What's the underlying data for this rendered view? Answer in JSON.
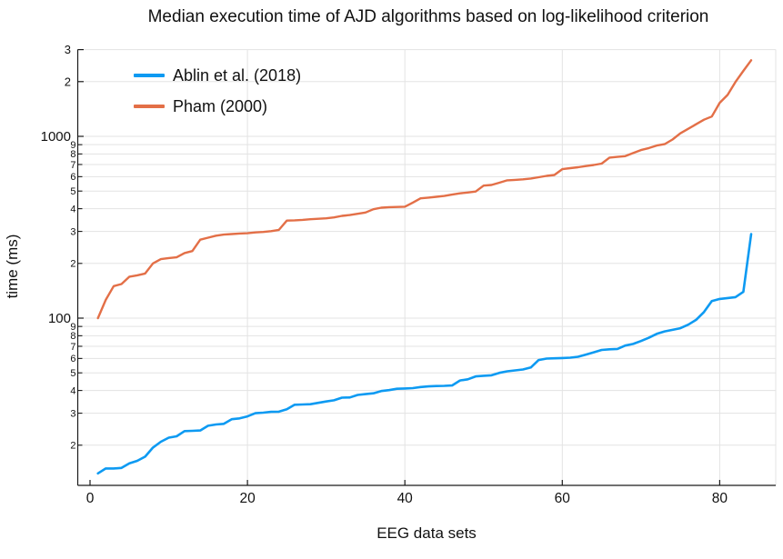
{
  "title": "Median execution time of AJD algorithms based on log-likelihood criterion",
  "chart_data": {
    "type": "line",
    "title": "Median execution time of AJD algorithms based on log-likelihood criterion",
    "xlabel": "EEG data sets",
    "ylabel": "time (ms)",
    "y_scale": "log",
    "xlim": [
      -1.6,
      87.1
    ],
    "ylim": [
      12,
      3000
    ],
    "grid": true,
    "legend_position": "top-left-inside",
    "x_ticks": [
      0,
      20,
      40,
      60,
      80
    ],
    "y_major_ticks": [
      {
        "value": 3000,
        "label": "3"
      },
      {
        "value": 2000,
        "label": "2"
      },
      {
        "value": 1000,
        "label": "1000"
      },
      {
        "value": 100,
        "label": "100"
      }
    ],
    "y_minor_ticks": [
      {
        "value": 900,
        "label": "9"
      },
      {
        "value": 800,
        "label": "8"
      },
      {
        "value": 700,
        "label": "7"
      },
      {
        "value": 600,
        "label": "6"
      },
      {
        "value": 500,
        "label": "5"
      },
      {
        "value": 400,
        "label": "4"
      },
      {
        "value": 300,
        "label": "3"
      },
      {
        "value": 200,
        "label": "2"
      },
      {
        "value": 90,
        "label": "9"
      },
      {
        "value": 80,
        "label": "8"
      },
      {
        "value": 70,
        "label": "7"
      },
      {
        "value": 60,
        "label": "6"
      },
      {
        "value": 50,
        "label": "5"
      },
      {
        "value": 40,
        "label": "4"
      },
      {
        "value": 30,
        "label": "3"
      },
      {
        "value": 20,
        "label": "2"
      }
    ],
    "x_start": 1,
    "series": [
      {
        "name": "Ablin et al. (2018)",
        "color": "#0D9AF2",
        "values": [
          14.0,
          14.9,
          14.9,
          15.0,
          15.9,
          16.4,
          17.3,
          19.4,
          20.9,
          22.0,
          22.4,
          23.9,
          24.0,
          24.1,
          25.6,
          26.0,
          26.2,
          27.8,
          28.1,
          28.8,
          30.0,
          30.2,
          30.5,
          30.6,
          31.5,
          33.4,
          33.5,
          33.6,
          34.2,
          34.8,
          35.3,
          36.5,
          36.6,
          37.8,
          38.2,
          38.6,
          39.7,
          40.2,
          40.9,
          41.0,
          41.2,
          41.8,
          42.1,
          42.3,
          42.4,
          42.6,
          45.4,
          46.1,
          47.8,
          48.2,
          48.5,
          50.0,
          51.0,
          51.6,
          52.2,
          53.5,
          58.8,
          59.9,
          60.1,
          60.3,
          60.6,
          61.3,
          63.0,
          64.9,
          66.8,
          67.4,
          67.7,
          70.6,
          72.1,
          74.8,
          78.0,
          81.9,
          84.5,
          86.2,
          88.0,
          92.0,
          97.8,
          108.0,
          124.0,
          127.5,
          129.0,
          130.5,
          139.5,
          290.0
        ]
      },
      {
        "name": "Pham (2000)",
        "color": "#E36F47",
        "values": [
          100,
          126,
          150,
          154,
          169,
          172,
          176,
          200,
          211,
          214,
          216,
          228,
          234,
          270,
          277,
          284,
          288,
          290,
          292,
          293,
          296,
          298,
          301,
          306,
          344,
          345,
          347,
          350,
          352,
          354,
          358,
          365,
          369,
          375,
          381,
          397,
          405,
          408,
          409,
          410,
          432,
          456,
          460,
          465,
          470,
          478,
          486,
          491,
          497,
          536,
          540,
          556,
          573,
          576,
          580,
          586,
          596,
          606,
          613,
          660,
          668,
          676,
          686,
          696,
          708,
          764,
          771,
          778,
          809,
          840,
          862,
          890,
          906,
          960,
          1039,
          1100,
          1166,
          1235,
          1285,
          1530,
          1690,
          1990,
          2290,
          2620
        ]
      }
    ]
  },
  "legend": {
    "items": [
      {
        "label": "Ablin et al. (2018)",
        "color": "#0D9AF2"
      },
      {
        "label": "Pham (2000)",
        "color": "#E36F47"
      }
    ]
  }
}
